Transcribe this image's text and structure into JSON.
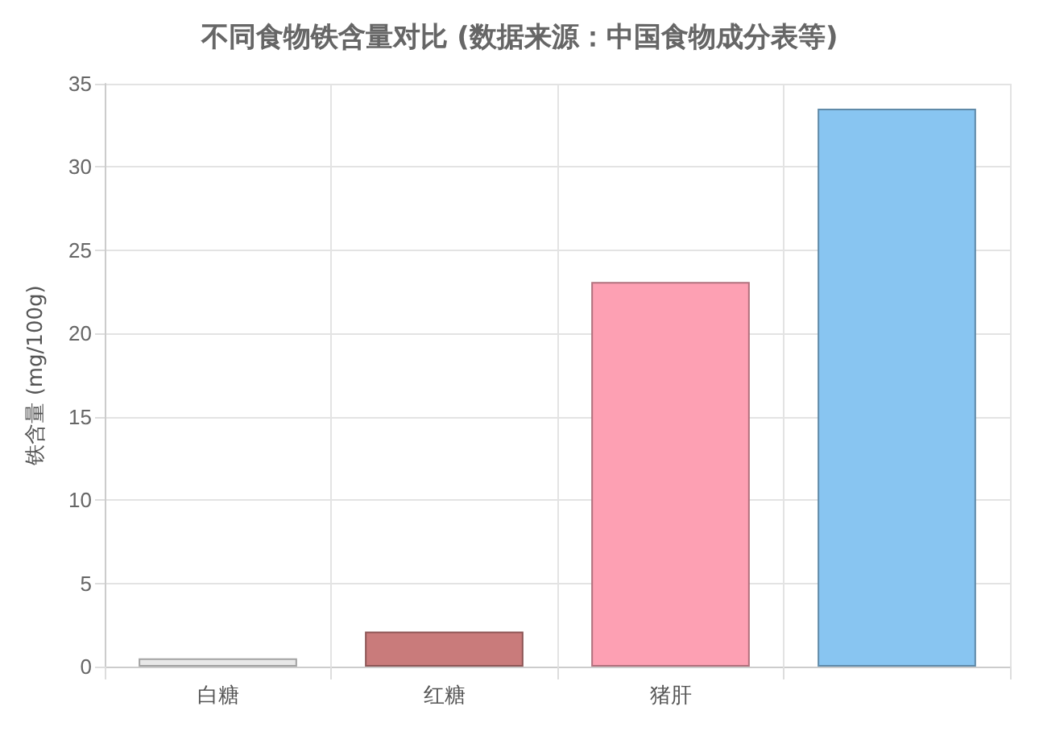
{
  "chart_data": {
    "type": "bar",
    "title": "不同食物铁含量对比 (数据来源：中国食物成分表等)",
    "ylabel": "铁含量 (mg/100g)",
    "categories": [
      "白糖",
      "红糖",
      "猪肝",
      null
    ],
    "values": [
      0.5,
      2.1,
      23.1,
      33.5
    ],
    "colors": [
      "#e8e8e8",
      "#c97b7b",
      "#fda0b3",
      "#88c5f1"
    ],
    "ylim": [
      0,
      35
    ],
    "yticks": [
      0,
      5,
      10,
      15,
      20,
      25,
      30,
      35
    ],
    "grid": true
  }
}
